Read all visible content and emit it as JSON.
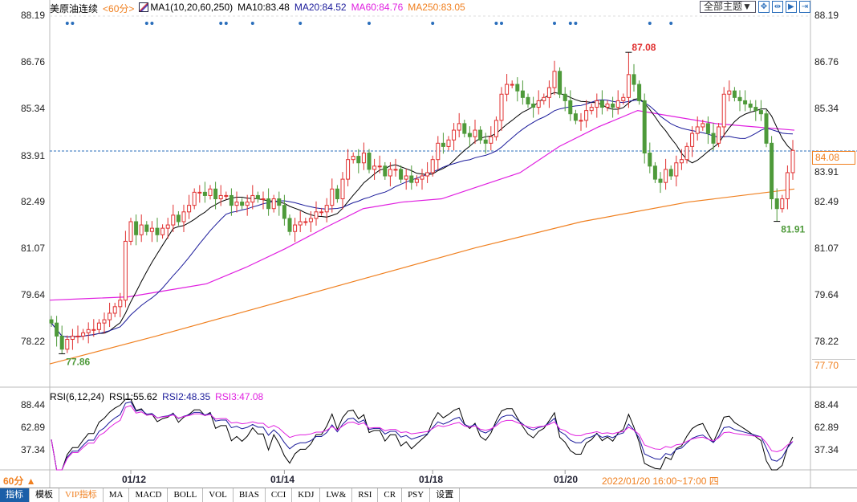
{
  "header": {
    "symbol": "美原油连续",
    "period": "<60分>",
    "ma_title": "MA1(10,20,60,250)",
    "ma10": "MA10:83.48",
    "ma20": "MA20:84.52",
    "ma60": "MA60:84.76",
    "ma250": "MA250:83.05"
  },
  "toolbar": {
    "theme": "全部主题▼",
    "icons": [
      "crosshair-icon",
      "fit-icon",
      "play-icon",
      "end-icon"
    ]
  },
  "axis": {
    "price_ticks": [
      "88.19",
      "86.76",
      "85.34",
      "83.91",
      "82.49",
      "81.07",
      "79.64",
      "78.22"
    ],
    "current_price": "84.08",
    "bottom_price": "77.70",
    "rsi_ticks": [
      "88.44",
      "62.89",
      "37.34"
    ]
  },
  "rsi_header": {
    "title": "RSI(6,12,24)",
    "rsi1": "RSI1:55.62",
    "rsi2": "RSI2:48.35",
    "rsi3": "RSI3:47.08"
  },
  "date_axis": {
    "period": "60分 ▲",
    "labels": [
      "01/12",
      "01/14",
      "01/18",
      "01/20"
    ],
    "status": "2022/01/20 16:00~17:00 四"
  },
  "tabs": [
    "指标",
    "模板",
    "VIP指标",
    "MA",
    "MACD",
    "BOLL",
    "VOL",
    "BIAS",
    "CCI",
    "KDJ",
    "LW&",
    "RSI",
    "CR",
    "PSY",
    "设置"
  ],
  "colors": {
    "up": "#e03030",
    "down": "#4e9a3a",
    "ma10": "#000000",
    "ma20": "#1a1a9a",
    "ma60": "#e020e0",
    "ma250": "#f08020",
    "accent": "#f08020"
  },
  "chart_data": {
    "type": "candlestick",
    "y_range": [
      77.7,
      88.19
    ],
    "closes": [
      78.8,
      78.4,
      78.0,
      78.3,
      78.4,
      78.4,
      78.5,
      78.6,
      78.6,
      78.8,
      78.9,
      79.1,
      79.3,
      79.5,
      81.3,
      81.9,
      81.5,
      81.8,
      81.6,
      81.7,
      81.5,
      81.7,
      81.8,
      82.1,
      81.9,
      82.2,
      82.4,
      82.8,
      82.8,
      82.7,
      82.9,
      82.6,
      82.7,
      82.7,
      82.4,
      82.5,
      82.4,
      82.5,
      82.7,
      82.6,
      82.6,
      82.3,
      82.6,
      82.4,
      82.0,
      81.6,
      81.8,
      81.9,
      81.9,
      82.0,
      82.2,
      82.2,
      82.4,
      82.9,
      82.6,
      83.2,
      83.8,
      83.9,
      83.7,
      84.0,
      83.5,
      83.6,
      83.6,
      83.3,
      83.5,
      83.5,
      83.2,
      83.3,
      83.1,
      83.2,
      83.3,
      83.4,
      83.8,
      84.3,
      84.2,
      84.4,
      84.7,
      84.9,
      84.6,
      84.5,
      84.7,
      84.4,
      84.3,
      84.5,
      85.0,
      85.8,
      86.1,
      86.1,
      85.9,
      85.7,
      85.5,
      85.4,
      85.6,
      85.7,
      86.0,
      86.5,
      85.8,
      85.6,
      85.2,
      85.0,
      85.0,
      85.3,
      85.4,
      85.6,
      85.4,
      85.5,
      85.4,
      85.6,
      85.7,
      86.4,
      86.1,
      85.6,
      84.0,
      83.6,
      83.2,
      83.1,
      83.5,
      83.3,
      83.7,
      83.8,
      84.2,
      84.6,
      84.8,
      84.9,
      84.6,
      84.3,
      84.8,
      85.8,
      85.9,
      85.7,
      85.6,
      85.5,
      85.4,
      85.3,
      85.2,
      84.3,
      82.6,
      82.3,
      82.6,
      83.4,
      84.08
    ],
    "extremes": [
      {
        "index": 109,
        "type": "high",
        "value": 87.08,
        "label": "87.08"
      },
      {
        "index": 2,
        "type": "low",
        "value": 77.86,
        "label": "77.86"
      },
      {
        "index": 137,
        "type": "low",
        "value": 81.91,
        "label": "81.91"
      }
    ],
    "ma60": [
      79.5,
      79.55,
      79.6,
      79.8,
      80.0,
      80.5,
      81.07,
      81.7,
      82.3,
      82.5,
      82.6,
      83.0,
      83.4,
      84.2,
      84.8,
      85.3,
      85.1,
      84.9,
      84.8,
      84.7
    ],
    "ma250": [
      77.55,
      78.4,
      79.3,
      80.2,
      81.1,
      81.9,
      82.5,
      82.9
    ],
    "date_tick_indices": [
      15,
      44,
      72,
      97
    ],
    "event_marker_indices": [
      3,
      4,
      18,
      19,
      32,
      33,
      38,
      47,
      60,
      72,
      84,
      85,
      95,
      98,
      99,
      113,
      117
    ],
    "rsi_periods": [
      6,
      12,
      24
    ]
  }
}
